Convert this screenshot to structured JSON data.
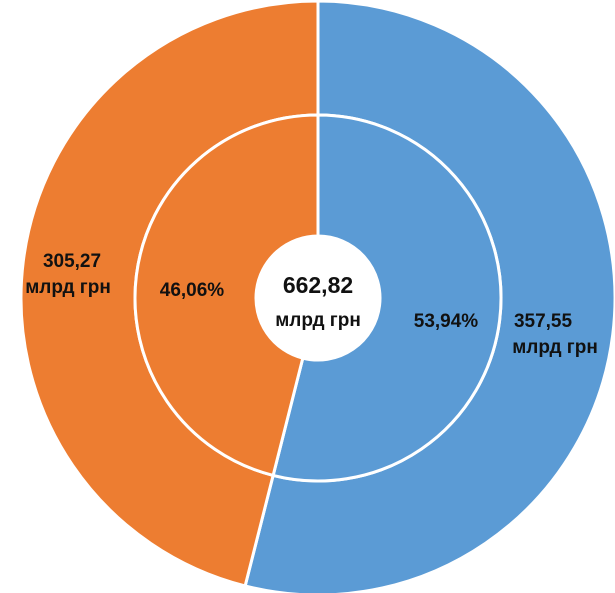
{
  "chart_data": {
    "type": "pie",
    "unit": "млрд грн",
    "center_label": "662,82",
    "series": [
      {
        "name": "outer",
        "colors": [
          "#5b9bd5",
          "#ed7d31"
        ],
        "values": [
          357.55,
          305.27
        ],
        "value_labels": [
          "357,55",
          "305,27"
        ]
      },
      {
        "name": "inner",
        "colors": [
          "#5b9bd5",
          "#ed7d31"
        ],
        "values": [
          53.94,
          46.06
        ],
        "value_labels": [
          "53,94%",
          "46,06%"
        ]
      }
    ]
  }
}
